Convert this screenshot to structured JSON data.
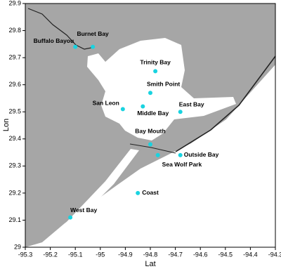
{
  "chart_data": {
    "type": "scatter",
    "x_label": "Lat",
    "y_label": "Lon",
    "xlim": [
      -95.3,
      -94.3
    ],
    "ylim": [
      29,
      29.9
    ],
    "xticks": [
      -95.3,
      -95.2,
      -95.1,
      -95,
      -94.9,
      -94.8,
      -94.7,
      -94.6,
      -94.5,
      -94.4,
      -94.3
    ],
    "yticks": [
      29,
      29.1,
      29.2,
      29.3,
      29.4,
      29.5,
      29.6,
      29.7,
      29.8,
      29.9
    ],
    "series": [
      {
        "color": "#19d3e0",
        "labels": [
          "Buffalo Bayou",
          "Burnet Bay",
          "Trinity Bay",
          "Smith Point",
          "San Leon",
          "Middle Bay",
          "East Bay",
          "Bay Mouth",
          "Outside Bay",
          "Sea Wolf Park",
          "Coast",
          "West Bay"
        ],
        "x": [
          -95.1,
          -95.03,
          -94.78,
          -94.8,
          -94.91,
          -94.83,
          -94.68,
          -94.8,
          -94.68,
          -94.77,
          -94.85,
          -95.12
        ],
        "values": [
          29.74,
          29.74,
          29.65,
          29.57,
          29.51,
          29.52,
          29.5,
          29.38,
          29.34,
          29.34,
          29.2,
          29.11
        ]
      }
    ]
  }
}
